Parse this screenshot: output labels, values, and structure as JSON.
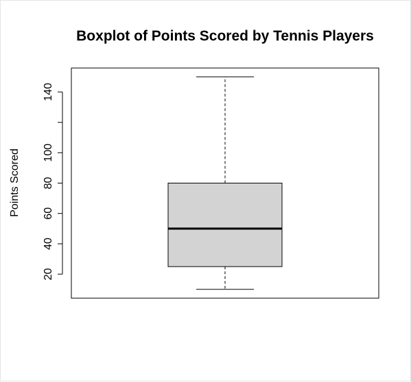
{
  "chart_data": {
    "type": "boxplot",
    "title": "Boxplot of Points Scored by Tennis Players",
    "xlabel": "",
    "ylabel": "Points Scored",
    "ylim": [
      4.2,
      155.8
    ],
    "yticks": [
      20,
      40,
      60,
      80,
      100,
      120,
      140
    ],
    "ytick_labels": [
      "20",
      "40",
      "60",
      "80",
      "100",
      "",
      "140"
    ],
    "grid": false,
    "box": {
      "min": 10,
      "q1": 25,
      "median": 50,
      "q3": 80,
      "max": 150
    },
    "colors": {
      "box_fill": "#d3d3d3",
      "line": "#000000"
    }
  }
}
